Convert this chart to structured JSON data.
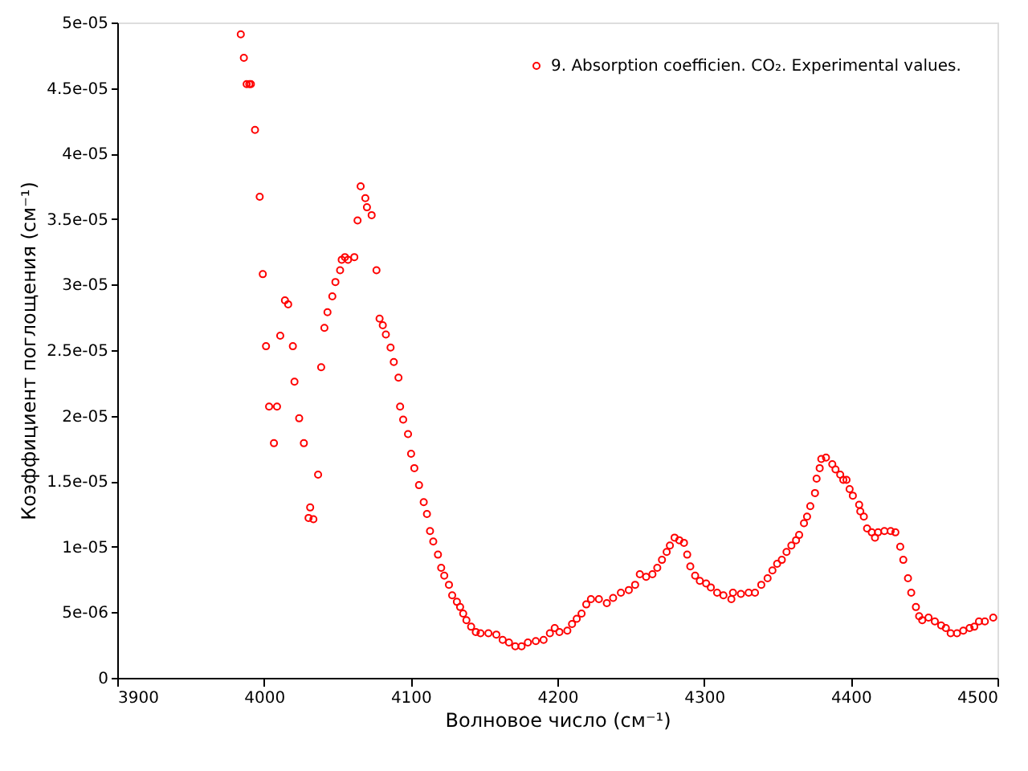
{
  "chart_data": {
    "type": "scatter",
    "xlabel": "Волновое число (см⁻¹)",
    "ylabel": "Коэффициент поглощения (см⁻¹)",
    "xlim": [
      3900,
      4500
    ],
    "xticks": [
      3900,
      4000,
      4100,
      4200,
      4300,
      4400,
      4500
    ],
    "ylim": [
      0,
      5e-05
    ],
    "yticks": [
      0,
      {
        "value": 5e-06,
        "label": "5e-06"
      },
      {
        "value": 1e-05,
        "label": "1e-05"
      },
      {
        "value": 1.5e-05,
        "label": "1.5e-05"
      },
      {
        "value": 2e-05,
        "label": "2e-05"
      },
      {
        "value": 2.5e-05,
        "label": "2.5e-05"
      },
      {
        "value": 3e-05,
        "label": "3e-05"
      },
      {
        "value": 3.5e-05,
        "label": "3.5e-05"
      },
      {
        "value": 4e-05,
        "label": "4e-05"
      },
      {
        "value": 4.5e-05,
        "label": "4.5e-05"
      },
      {
        "value": 5e-05,
        "label": "5e-05"
      }
    ],
    "grid": false,
    "legend": "top right",
    "marker": "circle",
    "series": [
      {
        "name": "9. Absorption coefficien. CO₂. Experimental values.",
        "color": "#ff0000",
        "x": [
          3984.2,
          3986.3,
          3988.2,
          3990.0,
          3991.1,
          3993.9,
          3997.1,
          3999.2,
          4001.4,
          4003.5,
          4006.8,
          4008.9,
          4011.1,
          4014.3,
          4016.5,
          4019.7,
          4020.8,
          4024.0,
          4027.2,
          4030.4,
          4031.5,
          4033.7,
          4036.9,
          4039.0,
          4041.2,
          4043.3,
          4046.6,
          4048.7,
          4051.9,
          4053.0,
          4055.2,
          4057.3,
          4061.6,
          4063.8,
          4065.9,
          4069.1,
          4070.2,
          4073.4,
          4076.7,
          4078.8,
          4081.0,
          4083.1,
          4086.3,
          4088.5,
          4091.7,
          4092.8,
          4094.9,
          4098.2,
          4100.3,
          4102.5,
          4105.7,
          4108.9,
          4111.1,
          4113.2,
          4115.4,
          4118.6,
          4120.8,
          4122.9,
          4126.1,
          4128.3,
          4131.5,
          4133.7,
          4135.8,
          4138.0,
          4141.2,
          4144.4,
          4147.6,
          4153.0,
          4158.4,
          4162.7,
          4167.0,
          4171.3,
          4175.6,
          4179.9,
          4185.3,
          4190.6,
          4194.9,
          4198.2,
          4201.4,
          4206.8,
          4210.0,
          4213.2,
          4216.5,
          4219.7,
          4222.9,
          4228.3,
          4233.7,
          4238.0,
          4243.3,
          4248.7,
          4253.0,
          4256.2,
          4260.5,
          4264.8,
          4268.1,
          4271.3,
          4274.5,
          4276.7,
          4279.9,
          4283.1,
          4286.3,
          4288.5,
          4290.6,
          4293.9,
          4297.1,
          4301.4,
          4304.6,
          4308.9,
          4313.2,
          4318.6,
          4319.7,
          4325.1,
          4330.4,
          4334.7,
          4339.0,
          4343.3,
          4346.6,
          4349.8,
          4353.0,
          4356.2,
          4359.5,
          4362.7,
          4364.8,
          4368.1,
          4370.2,
          4372.4,
          4375.6,
          4376.7,
          4378.8,
          4379.9,
          4383.1,
          4387.4,
          4389.6,
          4392.8,
          4394.9,
          4397.1,
          4399.2,
          4401.4,
          4405.7,
          4406.5,
          4408.9,
          4411.1,
          4414.3,
          4416.5,
          4418.6,
          4422.9,
          4427.2,
          4430.4,
          4433.7,
          4435.8,
          4439.0,
          4441.2,
          4444.4,
          4446.6,
          4448.7,
          4453.0,
          4457.3,
          4461.6,
          4464.8,
          4468.1,
          4472.4,
          4476.7,
          4481.0,
          4484.2,
          4487.4,
          4491.4,
          4497.1
        ],
        "values": [
          4.91e-05,
          4.73e-05,
          4.53e-05,
          4.53e-05,
          4.53e-05,
          4.18e-05,
          3.67e-05,
          3.08e-05,
          2.53e-05,
          2.07e-05,
          1.79e-05,
          2.07e-05,
          2.61e-05,
          2.88e-05,
          2.85e-05,
          2.53e-05,
          2.26e-05,
          1.98e-05,
          1.79e-05,
          1.22e-05,
          1.3e-05,
          1.21e-05,
          1.55e-05,
          2.37e-05,
          2.67e-05,
          2.79e-05,
          2.91e-05,
          3.02e-05,
          3.11e-05,
          3.19e-05,
          3.21e-05,
          3.19e-05,
          3.21e-05,
          3.49e-05,
          3.75e-05,
          3.66e-05,
          3.59e-05,
          3.53e-05,
          3.11e-05,
          2.74e-05,
          2.69e-05,
          2.62e-05,
          2.52e-05,
          2.41e-05,
          2.29e-05,
          2.07e-05,
          1.97e-05,
          1.86e-05,
          1.71e-05,
          1.6e-05,
          1.47e-05,
          1.34e-05,
          1.25e-05,
          1.12e-05,
          1.04e-05,
          9.4e-06,
          8.4e-06,
          7.8e-06,
          7.1e-06,
          6.3e-06,
          5.8e-06,
          5.4e-06,
          4.9e-06,
          4.4e-06,
          3.9e-06,
          3.5e-06,
          3.4e-06,
          3.4e-06,
          3.3e-06,
          2.9e-06,
          2.7e-06,
          2.4e-06,
          2.4e-06,
          2.7e-06,
          2.8e-06,
          2.9e-06,
          3.4e-06,
          3.8e-06,
          3.5e-06,
          3.6e-06,
          4.1e-06,
          4.5e-06,
          4.9e-06,
          5.6e-06,
          6e-06,
          6e-06,
          5.7e-06,
          6.1e-06,
          6.5e-06,
          6.7e-06,
          7.1e-06,
          7.9e-06,
          7.7e-06,
          7.9e-06,
          8.4e-06,
          9e-06,
          9.6e-06,
          1.01e-05,
          1.07e-05,
          1.05e-05,
          1.03e-05,
          9.4e-06,
          8.5e-06,
          7.8e-06,
          7.4e-06,
          7.2e-06,
          6.9e-06,
          6.5e-06,
          6.3e-06,
          6e-06,
          6.5e-06,
          6.4e-06,
          6.5e-06,
          6.5e-06,
          7.1e-06,
          7.6e-06,
          8.2e-06,
          8.7e-06,
          9e-06,
          9.6e-06,
          1.01e-05,
          1.05e-05,
          1.09e-05,
          1.18e-05,
          1.23e-05,
          1.31e-05,
          1.41e-05,
          1.52e-05,
          1.6e-05,
          1.67e-05,
          1.68e-05,
          1.63e-05,
          1.59e-05,
          1.55e-05,
          1.51e-05,
          1.51e-05,
          1.44e-05,
          1.39e-05,
          1.32e-05,
          1.27e-05,
          1.23e-05,
          1.14e-05,
          1.11e-05,
          1.07e-05,
          1.11e-05,
          1.12e-05,
          1.12e-05,
          1.11e-05,
          1e-05,
          9e-06,
          7.6e-06,
          6.5e-06,
          5.4e-06,
          4.7e-06,
          4.4e-06,
          4.6e-06,
          4.3e-06,
          4e-06,
          3.8e-06,
          3.4e-06,
          3.4e-06,
          3.6e-06,
          3.8e-06,
          3.9e-06,
          4.3e-06,
          4.3e-06,
          4.6e-06
        ]
      }
    ]
  }
}
